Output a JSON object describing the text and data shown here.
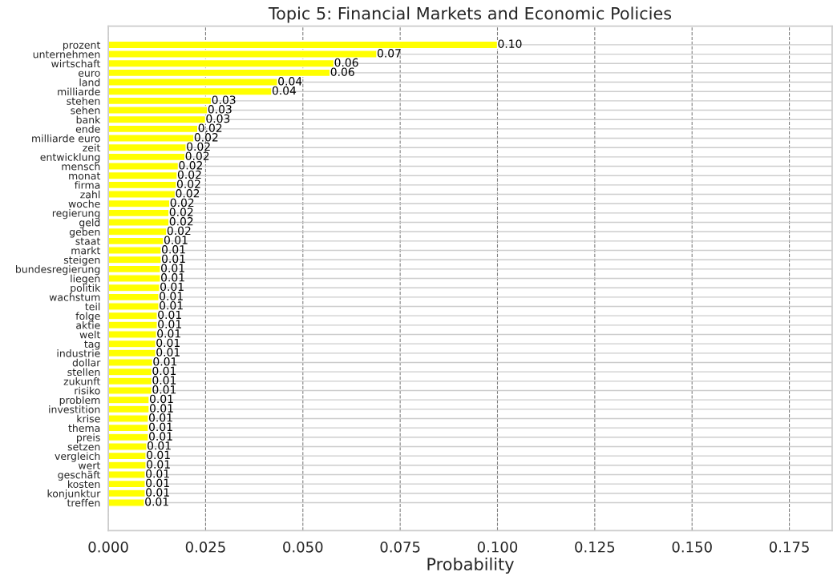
{
  "chart_data": {
    "type": "bar",
    "orientation": "horizontal",
    "title": "Topic 5: Financial Markets and Economic Policies",
    "xlabel": "Probability",
    "categories": [
      "prozent",
      "unternehmen",
      "wirtschaft",
      "euro",
      "land",
      "milliarde",
      "stehen",
      "sehen",
      "bank",
      "ende",
      "milliarde euro",
      "zeit",
      "entwicklung",
      "mensch",
      "monat",
      "firma",
      "zahl",
      "woche",
      "regierung",
      "geld",
      "geben",
      "staat",
      "markt",
      "steigen",
      "bundesregierung",
      "liegen",
      "politik",
      "wachstum",
      "teil",
      "folge",
      "aktie",
      "welt",
      "tag",
      "industrie",
      "dollar",
      "stellen",
      "zukunft",
      "risiko",
      "problem",
      "investition",
      "krise",
      "thema",
      "preis",
      "setzen",
      "vergleich",
      "wert",
      "geschäft",
      "kosten",
      "konjunktur",
      "treffen"
    ],
    "values": [
      0.1,
      0.069,
      0.058,
      0.057,
      0.0435,
      0.042,
      0.0265,
      0.0255,
      0.025,
      0.023,
      0.022,
      0.02,
      0.0197,
      0.018,
      0.0177,
      0.0175,
      0.0172,
      0.0158,
      0.0156,
      0.0156,
      0.015,
      0.0142,
      0.0136,
      0.0136,
      0.0134,
      0.0134,
      0.0132,
      0.013,
      0.013,
      0.0126,
      0.0126,
      0.0124,
      0.0122,
      0.0122,
      0.0114,
      0.0112,
      0.0112,
      0.0112,
      0.0105,
      0.0105,
      0.0103,
      0.0103,
      0.0103,
      0.0099,
      0.0097,
      0.0097,
      0.0095,
      0.0095,
      0.0095,
      0.0093
    ],
    "value_labels": [
      "0.10",
      "0.07",
      "0.06",
      "0.06",
      "0.04",
      "0.04",
      "0.03",
      "0.03",
      "0.03",
      "0.02",
      "0.02",
      "0.02",
      "0.02",
      "0.02",
      "0.02",
      "0.02",
      "0.02",
      "0.02",
      "0.02",
      "0.02",
      "0.02",
      "0.01",
      "0.01",
      "0.01",
      "0.01",
      "0.01",
      "0.01",
      "0.01",
      "0.01",
      "0.01",
      "0.01",
      "0.01",
      "0.01",
      "0.01",
      "0.01",
      "0.01",
      "0.01",
      "0.01",
      "0.01",
      "0.01",
      "0.01",
      "0.01",
      "0.01",
      "0.01",
      "0.01",
      "0.01",
      "0.01",
      "0.01",
      "0.01",
      "0.01"
    ],
    "color": "#ffff00",
    "xlim": [
      0,
      0.186
    ],
    "xticks": [
      {
        "value": 0,
        "label": "0.000"
      },
      {
        "value": 0.025,
        "label": "0.025"
      },
      {
        "value": 0.05,
        "label": "0.050"
      },
      {
        "value": 0.075,
        "label": "0.075"
      },
      {
        "value": 0.1,
        "label": "0.100"
      },
      {
        "value": 0.125,
        "label": "0.125"
      },
      {
        "value": 0.15,
        "label": "0.150"
      },
      {
        "value": 0.175,
        "label": "0.175"
      }
    ],
    "grid": true
  }
}
